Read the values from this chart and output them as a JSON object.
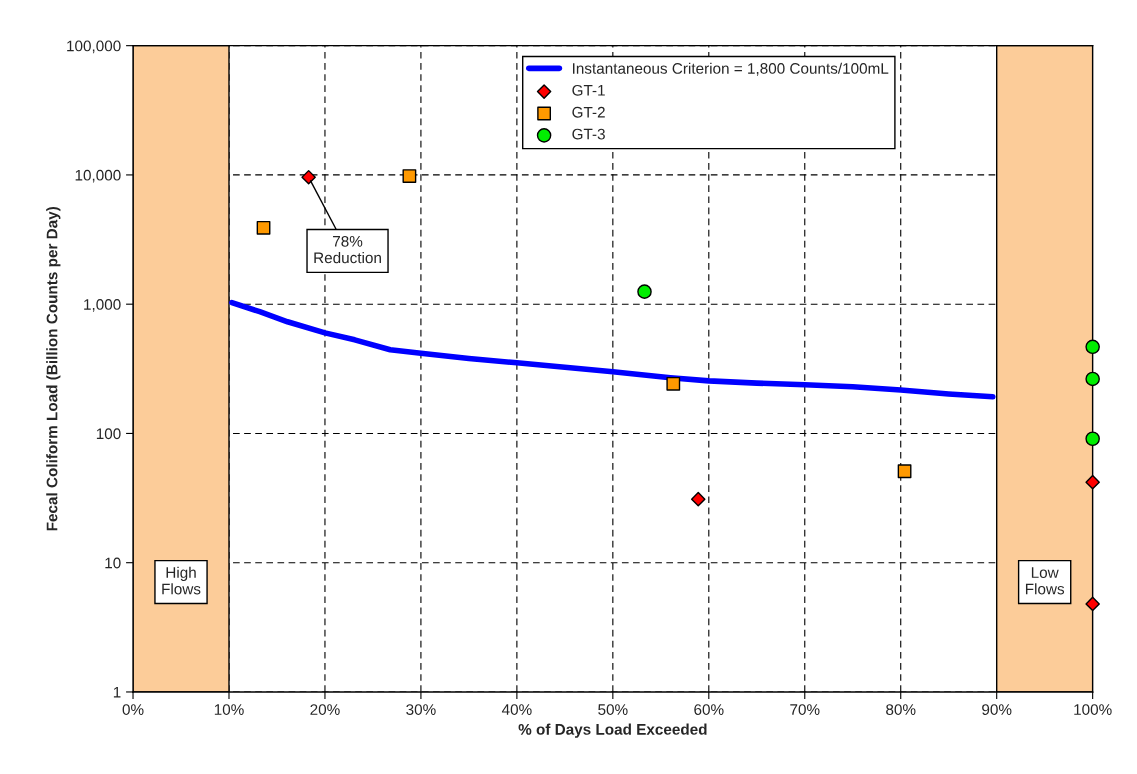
{
  "chart_data": {
    "type": "scatter",
    "xlabel": "% of Days Load Exceeded",
    "ylabel": "Fecal Coliform Load (Billion Counts per Day)",
    "log": "y",
    "xlim": [
      0,
      100
    ],
    "ylim": [
      1,
      100000
    ],
    "xticks": [
      {
        "value": 0,
        "label": "0%"
      },
      {
        "value": 10,
        "label": "10%"
      },
      {
        "value": 20,
        "label": "20%"
      },
      {
        "value": 30,
        "label": "30%"
      },
      {
        "value": 40,
        "label": "40%"
      },
      {
        "value": 50,
        "label": "50%"
      },
      {
        "value": 60,
        "label": "60%"
      },
      {
        "value": 70,
        "label": "70%"
      },
      {
        "value": 80,
        "label": "80%"
      },
      {
        "value": 90,
        "label": "90%"
      },
      {
        "value": 100,
        "label": "100%"
      }
    ],
    "yticks": [
      1,
      10,
      100,
      {
        "value": 1000,
        "label": "1,000"
      },
      {
        "value": 10000,
        "label": "10,000"
      },
      {
        "value": 100000,
        "label": "100,000"
      }
    ],
    "grid": true,
    "legend": "top",
    "series": [
      {
        "name": "Instantaneous Criterion = 1,800 Counts/100mL",
        "type": "line",
        "color": "#0000ff",
        "marker": "none",
        "line_style": "solid",
        "x": [
          10.3,
          13.2,
          16.1,
          20,
          23.1,
          26.8,
          30,
          35,
          40,
          45,
          50,
          56,
          60,
          65,
          70,
          75,
          80,
          85,
          89.6
        ],
        "values": [
          1030,
          875,
          731,
          600,
          530,
          444,
          418,
          380,
          352,
          325,
          300,
          270,
          255,
          245,
          238,
          230,
          217,
          202,
          192
        ]
      },
      {
        "name": "GT-1",
        "color": "#ff0000",
        "marker": "diamond",
        "x": [
          18.3,
          58.9,
          100,
          100
        ],
        "values": [
          9600,
          31,
          42,
          4.8
        ]
      },
      {
        "name": "GT-2",
        "color": "#ff9900",
        "marker": "square",
        "x": [
          13.6,
          28.8,
          56.3,
          80.4
        ],
        "values": [
          3900,
          9800,
          242,
          51
        ]
      },
      {
        "name": "GT-3",
        "color": "#00ee00",
        "marker": "circle",
        "x": [
          53.3,
          100,
          100,
          100
        ],
        "values": [
          1250,
          468,
          264,
          91
        ]
      }
    ],
    "bands": [
      {
        "axis": "x",
        "from": 0,
        "to": 10,
        "label": "High\nFlows",
        "color": "#fccc99"
      },
      {
        "axis": "x",
        "from": 90,
        "to": 100,
        "label": "Low\nFlows",
        "color": "#fccc99"
      }
    ],
    "annotations": [
      {
        "text": "78%\nReduction",
        "x": 18.3,
        "y": 9600
      }
    ]
  }
}
